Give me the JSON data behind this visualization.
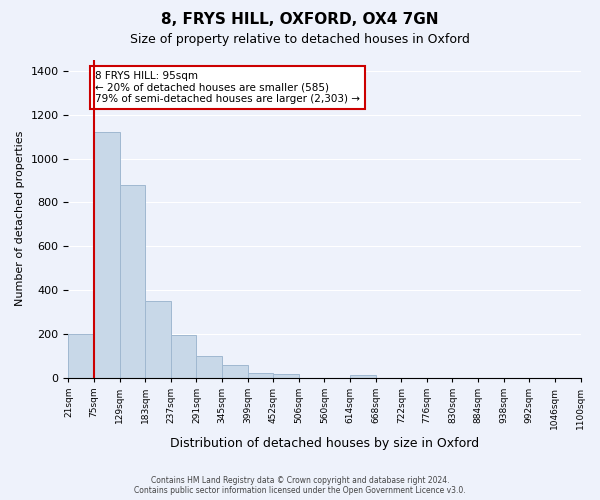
{
  "title": "8, FRYS HILL, OXFORD, OX4 7GN",
  "subtitle": "Size of property relative to detached houses in Oxford",
  "xlabel": "Distribution of detached houses by size in Oxford",
  "ylabel": "Number of detached properties",
  "bin_labels": [
    "21sqm",
    "75sqm",
    "129sqm",
    "183sqm",
    "237sqm",
    "291sqm",
    "345sqm",
    "399sqm",
    "452sqm",
    "506sqm",
    "560sqm",
    "614sqm",
    "668sqm",
    "722sqm",
    "776sqm",
    "830sqm",
    "884sqm",
    "938sqm",
    "992sqm",
    "1046sqm",
    "1100sqm"
  ],
  "bar_heights": [
    200,
    1120,
    880,
    350,
    195,
    100,
    55,
    22,
    18,
    0,
    0,
    12,
    0,
    0,
    0,
    0,
    0,
    0,
    0,
    0
  ],
  "bar_color": "#c8d8e8",
  "bar_edge_color": "#a0b8d0",
  "property_line_x": 1,
  "property_line_color": "#cc0000",
  "annotation_text": "8 FRYS HILL: 95sqm\n← 20% of detached houses are smaller (585)\n79% of semi-detached houses are larger (2,303) →",
  "annotation_box_color": "#ffffff",
  "annotation_box_edge": "#cc0000",
  "ylim": [
    0,
    1450
  ],
  "yticks": [
    0,
    200,
    400,
    600,
    800,
    1000,
    1200,
    1400
  ],
  "footer_line1": "Contains HM Land Registry data © Crown copyright and database right 2024.",
  "footer_line2": "Contains public sector information licensed under the Open Government Licence v3.0.",
  "background_color": "#eef2fb"
}
